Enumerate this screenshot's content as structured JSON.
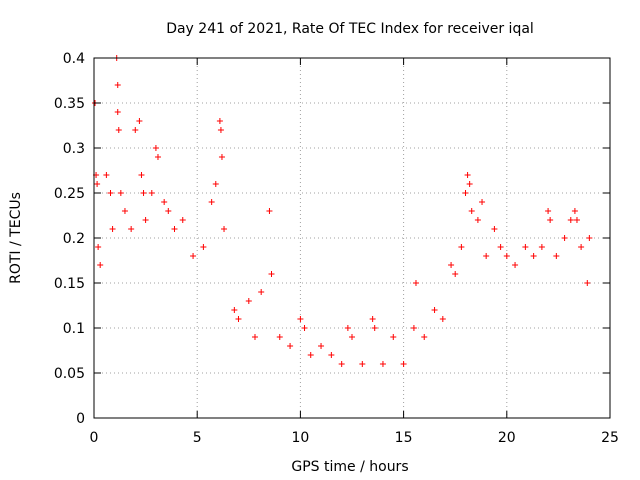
{
  "chart_data": {
    "type": "scatter",
    "title": "Day 241 of 2021, Rate Of TEC Index for receiver iqal",
    "xlabel": "GPS time / hours",
    "ylabel": "ROTI / TECUs",
    "xlim": [
      0,
      25
    ],
    "ylim": [
      0,
      0.4
    ],
    "x_ticks": [
      "0",
      "5",
      "10",
      "15",
      "20",
      "25"
    ],
    "y_ticks": [
      "0",
      "0.05",
      "0.1",
      "0.15",
      "0.2",
      "0.25",
      "0.3",
      "0.35",
      "0.4"
    ],
    "grid": true,
    "marker": "+",
    "color": "#ff0000",
    "series": [
      {
        "points": [
          [
            0.05,
            0.35
          ],
          [
            0.1,
            0.27
          ],
          [
            0.15,
            0.26
          ],
          [
            0.2,
            0.19
          ],
          [
            0.3,
            0.17
          ],
          [
            0.6,
            0.27
          ],
          [
            0.8,
            0.25
          ],
          [
            0.9,
            0.21
          ],
          [
            1.1,
            0.4
          ],
          [
            1.15,
            0.37
          ],
          [
            1.15,
            0.34
          ],
          [
            1.2,
            0.32
          ],
          [
            1.3,
            0.25
          ],
          [
            1.5,
            0.23
          ],
          [
            1.8,
            0.21
          ],
          [
            2.0,
            0.32
          ],
          [
            2.2,
            0.33
          ],
          [
            2.3,
            0.27
          ],
          [
            2.4,
            0.25
          ],
          [
            2.5,
            0.22
          ],
          [
            2.8,
            0.25
          ],
          [
            3.0,
            0.3
          ],
          [
            3.1,
            0.29
          ],
          [
            3.4,
            0.24
          ],
          [
            3.6,
            0.23
          ],
          [
            3.9,
            0.21
          ],
          [
            4.3,
            0.22
          ],
          [
            4.8,
            0.18
          ],
          [
            5.3,
            0.19
          ],
          [
            5.7,
            0.24
          ],
          [
            5.9,
            0.26
          ],
          [
            6.1,
            0.33
          ],
          [
            6.15,
            0.32
          ],
          [
            6.2,
            0.29
          ],
          [
            6.3,
            0.21
          ],
          [
            6.8,
            0.12
          ],
          [
            7.0,
            0.11
          ],
          [
            7.5,
            0.13
          ],
          [
            7.8,
            0.09
          ],
          [
            8.1,
            0.14
          ],
          [
            8.5,
            0.23
          ],
          [
            8.6,
            0.16
          ],
          [
            9.0,
            0.09
          ],
          [
            9.5,
            0.08
          ],
          [
            10.0,
            0.11
          ],
          [
            10.2,
            0.1
          ],
          [
            10.5,
            0.07
          ],
          [
            11.0,
            0.08
          ],
          [
            11.5,
            0.07
          ],
          [
            12.0,
            0.06
          ],
          [
            12.3,
            0.1
          ],
          [
            12.5,
            0.09
          ],
          [
            13.0,
            0.06
          ],
          [
            13.5,
            0.11
          ],
          [
            13.6,
            0.1
          ],
          [
            14.0,
            0.06
          ],
          [
            14.5,
            0.09
          ],
          [
            15.0,
            0.06
          ],
          [
            15.5,
            0.1
          ],
          [
            15.6,
            0.15
          ],
          [
            16.0,
            0.09
          ],
          [
            16.5,
            0.12
          ],
          [
            16.9,
            0.11
          ],
          [
            17.3,
            0.17
          ],
          [
            17.5,
            0.16
          ],
          [
            17.8,
            0.19
          ],
          [
            18.0,
            0.25
          ],
          [
            18.1,
            0.27
          ],
          [
            18.2,
            0.26
          ],
          [
            18.3,
            0.23
          ],
          [
            18.6,
            0.22
          ],
          [
            18.8,
            0.24
          ],
          [
            19.0,
            0.18
          ],
          [
            19.4,
            0.21
          ],
          [
            19.7,
            0.19
          ],
          [
            20.0,
            0.18
          ],
          [
            20.4,
            0.17
          ],
          [
            20.9,
            0.19
          ],
          [
            21.3,
            0.18
          ],
          [
            21.7,
            0.19
          ],
          [
            22.0,
            0.23
          ],
          [
            22.1,
            0.22
          ],
          [
            22.4,
            0.18
          ],
          [
            22.8,
            0.2
          ],
          [
            23.1,
            0.22
          ],
          [
            23.3,
            0.23
          ],
          [
            23.4,
            0.22
          ],
          [
            23.6,
            0.19
          ],
          [
            23.9,
            0.15
          ],
          [
            24.0,
            0.2
          ]
        ]
      }
    ]
  }
}
